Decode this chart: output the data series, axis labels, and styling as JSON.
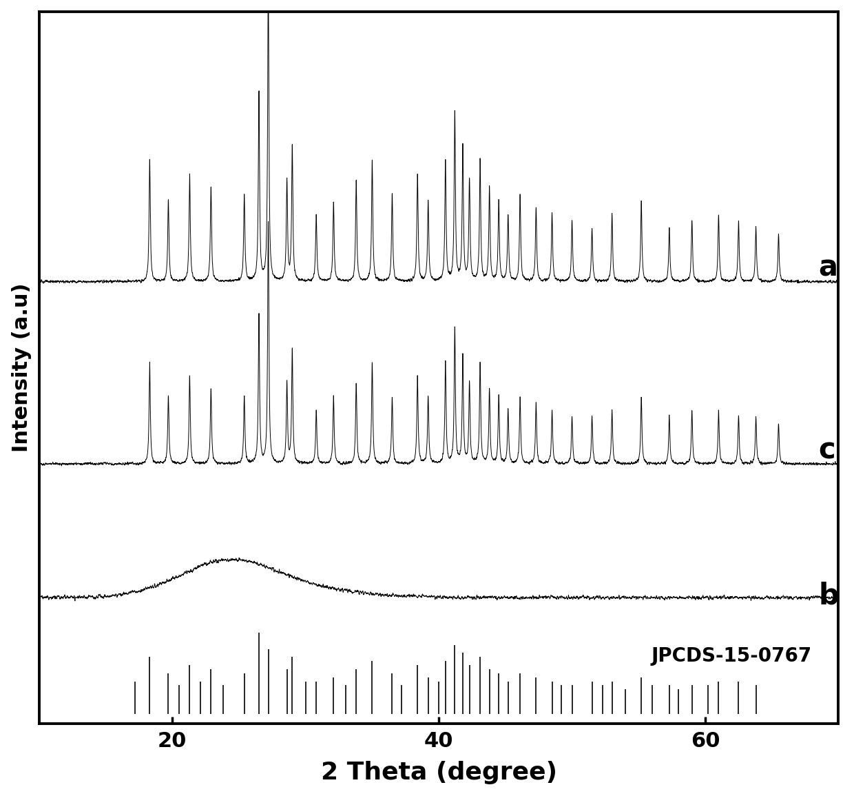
{
  "title": "",
  "xlabel": "2 Theta (degree)",
  "ylabel": "Intensity (a.u)",
  "xlim": [
    10,
    70
  ],
  "xlabel_fontsize": 26,
  "ylabel_fontsize": 22,
  "tick_fontsize": 22,
  "label_fontsize": 30,
  "jpcds_label": "JPCDS-15-0767",
  "jpcds_fontsize": 20,
  "background_color": "#ffffff",
  "line_color": "#000000",
  "bipo4_peaks": [
    18.3,
    19.7,
    21.3,
    22.9,
    25.4,
    26.5,
    27.2,
    28.6,
    29.0,
    30.8,
    32.1,
    33.8,
    35.0,
    36.5,
    38.4,
    39.2,
    40.5,
    41.2,
    41.8,
    42.3,
    43.1,
    43.8,
    44.5,
    45.2,
    46.1,
    47.3,
    48.5,
    50.0,
    51.5,
    53.0,
    55.2,
    57.3,
    59.0,
    61.0,
    62.5,
    63.8,
    65.5
  ],
  "bipo4_heights_a": [
    1.8,
    1.2,
    1.6,
    1.4,
    1.3,
    2.8,
    4.5,
    1.5,
    2.0,
    1.0,
    1.2,
    1.5,
    1.8,
    1.3,
    1.6,
    1.2,
    1.8,
    2.5,
    2.0,
    1.5,
    1.8,
    1.4,
    1.2,
    1.0,
    1.3,
    1.1,
    1.0,
    0.9,
    0.8,
    1.0,
    1.2,
    0.8,
    0.9,
    1.0,
    0.9,
    0.8,
    0.7
  ],
  "bipo4_heights_c": [
    1.5,
    1.0,
    1.3,
    1.1,
    1.0,
    2.2,
    3.6,
    1.2,
    1.7,
    0.8,
    1.0,
    1.2,
    1.5,
    1.0,
    1.3,
    1.0,
    1.5,
    2.0,
    1.6,
    1.2,
    1.5,
    1.1,
    1.0,
    0.8,
    1.0,
    0.9,
    0.8,
    0.7,
    0.7,
    0.8,
    1.0,
    0.7,
    0.8,
    0.8,
    0.7,
    0.7,
    0.6
  ],
  "jpcds_peaks": [
    17.2,
    18.3,
    19.7,
    20.5,
    21.3,
    22.1,
    22.9,
    23.8,
    25.4,
    26.5,
    27.2,
    28.6,
    29.0,
    30.0,
    30.8,
    32.1,
    33.0,
    33.8,
    35.0,
    36.5,
    37.2,
    38.4,
    39.2,
    40.0,
    40.5,
    41.2,
    41.8,
    42.3,
    43.1,
    43.8,
    44.5,
    45.2,
    46.1,
    47.3,
    48.5,
    49.2,
    50.0,
    51.5,
    52.3,
    53.0,
    54.0,
    55.2,
    56.0,
    57.3,
    58.0,
    59.0,
    60.2,
    61.0,
    62.5,
    63.8
  ],
  "jpcds_heights": [
    0.4,
    0.7,
    0.5,
    0.35,
    0.6,
    0.4,
    0.55,
    0.35,
    0.5,
    1.0,
    0.8,
    0.55,
    0.7,
    0.4,
    0.4,
    0.45,
    0.35,
    0.55,
    0.65,
    0.5,
    0.35,
    0.6,
    0.45,
    0.4,
    0.65,
    0.85,
    0.75,
    0.6,
    0.7,
    0.55,
    0.5,
    0.4,
    0.5,
    0.45,
    0.4,
    0.35,
    0.35,
    0.4,
    0.35,
    0.4,
    0.3,
    0.45,
    0.35,
    0.35,
    0.3,
    0.35,
    0.35,
    0.4,
    0.4,
    0.35
  ],
  "offsets": {
    "a": 6.5,
    "c": 3.8,
    "b": 1.8,
    "jpcds_base": 0.1
  }
}
